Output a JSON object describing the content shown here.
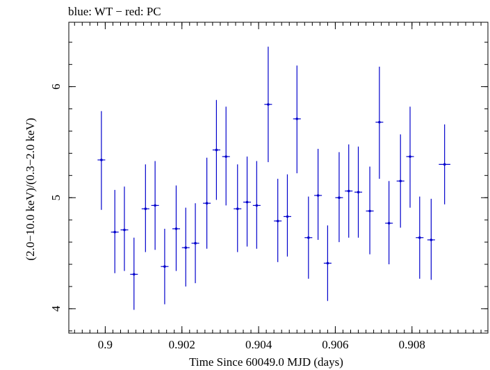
{
  "chart_data": {
    "type": "scatter",
    "title": "blue: WT − red: PC",
    "xlabel": "Time Since 60049.0 MJD (days)",
    "ylabel": "(2.0−10.0 keV)/(0.3−2.0 keV)",
    "xlim": [
      0.89905,
      0.90998
    ],
    "ylim": [
      3.78,
      6.58
    ],
    "xticks": [
      0.9,
      0.902,
      0.904,
      0.906,
      0.908
    ],
    "xtick_labels": [
      "0.9",
      "0.902",
      "0.904",
      "0.906",
      "0.908"
    ],
    "xminor": 0.0002,
    "yticks": [
      4,
      5,
      6
    ],
    "ytick_labels": [
      "4",
      "5",
      "6"
    ],
    "yminor": 0.2,
    "grid": false,
    "series": [
      {
        "color": "#0000cc",
        "x": [
          0.8999,
          0.90025,
          0.9005,
          0.90075,
          0.90105,
          0.9013,
          0.90155,
          0.90185,
          0.9021,
          0.90235,
          0.90265,
          0.9029,
          0.90315,
          0.90345,
          0.9037,
          0.90395,
          0.90425,
          0.9045,
          0.90475,
          0.905,
          0.9053,
          0.90555,
          0.9058,
          0.9061,
          0.90635,
          0.9066,
          0.9069,
          0.90715,
          0.9074,
          0.9077,
          0.90795,
          0.9082,
          0.9085,
          0.90885
        ],
        "xerr": [
          0.0001,
          0.0001,
          0.0001,
          0.0001,
          0.0001,
          0.0001,
          0.0001,
          0.0001,
          0.0001,
          0.0001,
          0.0001,
          0.0001,
          0.0001,
          0.0001,
          0.0001,
          0.0001,
          0.0001,
          0.0001,
          0.0001,
          0.0001,
          0.0001,
          0.0001,
          0.0001,
          0.0001,
          0.0001,
          0.0001,
          0.0001,
          0.0001,
          0.0001,
          0.0001,
          0.0001,
          0.0001,
          0.0001,
          0.00015
        ],
        "y": [
          5.34,
          4.69,
          4.71,
          4.31,
          4.9,
          4.93,
          4.38,
          4.72,
          4.55,
          4.59,
          4.95,
          5.43,
          5.37,
          4.9,
          4.96,
          4.93,
          5.84,
          4.79,
          4.83,
          5.71,
          4.64,
          5.02,
          4.41,
          5.0,
          5.06,
          5.05,
          4.88,
          5.68,
          4.77,
          5.15,
          5.37,
          4.64,
          4.62,
          5.3
        ],
        "ylo": [
          4.89,
          4.32,
          4.34,
          3.99,
          4.51,
          4.53,
          4.04,
          4.34,
          4.2,
          4.23,
          4.54,
          4.98,
          4.93,
          4.51,
          4.56,
          4.54,
          5.32,
          4.42,
          4.47,
          5.22,
          4.27,
          4.62,
          4.07,
          4.6,
          4.64,
          4.64,
          4.49,
          5.17,
          4.4,
          4.73,
          4.91,
          4.27,
          4.26,
          4.94
        ],
        "yhi": [
          5.78,
          5.07,
          5.1,
          4.64,
          5.3,
          5.33,
          4.72,
          5.11,
          4.91,
          4.95,
          5.36,
          5.88,
          5.82,
          5.3,
          5.37,
          5.33,
          6.36,
          5.17,
          5.21,
          6.19,
          5.01,
          5.44,
          4.75,
          5.41,
          5.48,
          5.46,
          5.28,
          6.18,
          5.15,
          5.57,
          5.82,
          5.01,
          4.99,
          5.66
        ]
      }
    ]
  }
}
